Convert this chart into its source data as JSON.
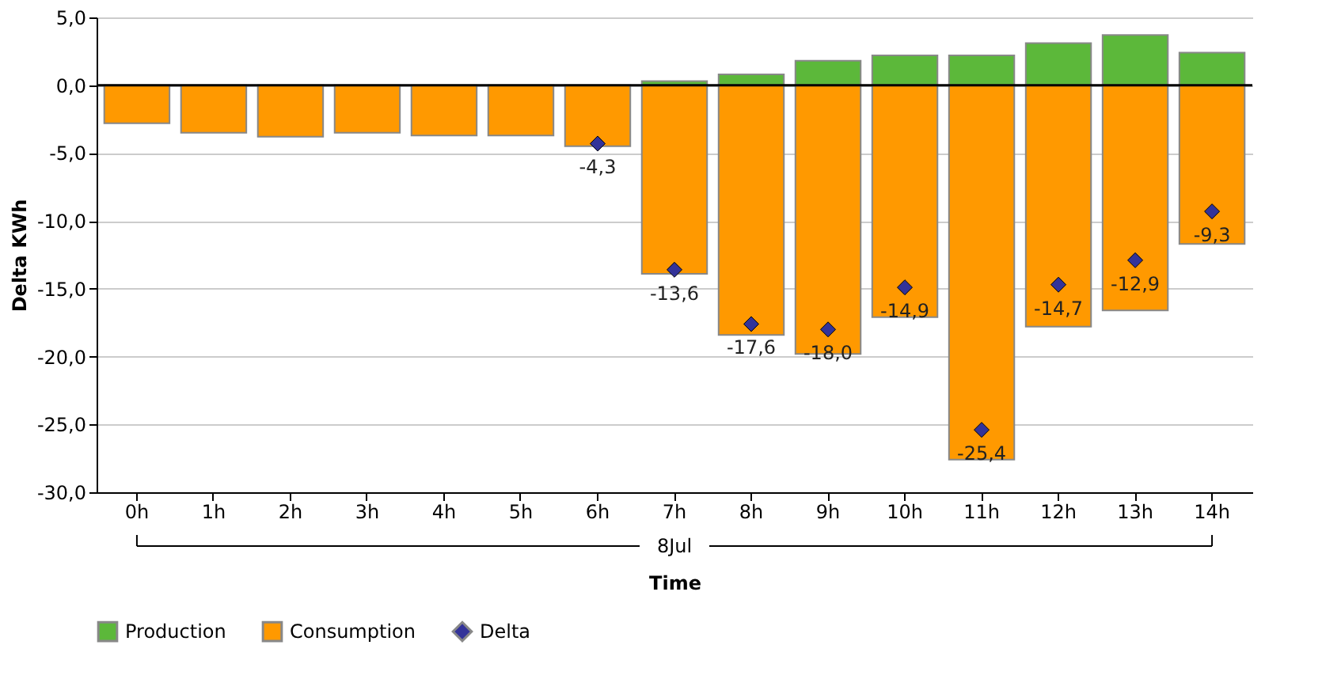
{
  "chart_data": {
    "type": "bar",
    "stacked": true,
    "xlabel": "Time",
    "ylabel": "Delta KWh",
    "categories": [
      "0h",
      "1h",
      "2h",
      "3h",
      "4h",
      "5h",
      "6h",
      "7h",
      "8h",
      "9h",
      "10h",
      "11h",
      "12h",
      "13h",
      "14h"
    ],
    "series": [
      {
        "name": "Production",
        "color": "#5cb83a",
        "values": [
          null,
          null,
          null,
          null,
          null,
          null,
          null,
          0.3,
          0.8,
          1.8,
          2.2,
          2.2,
          3.1,
          3.7,
          2.4
        ]
      },
      {
        "name": "Consumption",
        "color": "#ff9900",
        "values": [
          -2.8,
          -3.5,
          -3.8,
          -3.5,
          -3.7,
          -3.7,
          -4.5,
          -13.9,
          -18.4,
          -19.8,
          -17.1,
          -27.6,
          -17.8,
          -16.6,
          -11.7
        ]
      },
      {
        "name": "Delta",
        "type": "scatter",
        "color": "#333399",
        "marker": "diamond",
        "values": [
          null,
          null,
          null,
          null,
          null,
          null,
          -4.3,
          -13.6,
          -17.6,
          -18.0,
          -14.9,
          -25.4,
          -14.7,
          -12.9,
          -9.3
        ],
        "value_labels": [
          null,
          null,
          null,
          null,
          null,
          null,
          "-4,3",
          "-13,6",
          "-17,6",
          "-18,0",
          "-14,9",
          "-25,4",
          "-14,7",
          "-12,9",
          "-9,3"
        ]
      }
    ],
    "ylim": [
      -30,
      5
    ],
    "yticks": [
      {
        "value": -30,
        "label": "-30,0"
      },
      {
        "value": -25,
        "label": "-25,0"
      },
      {
        "value": -20,
        "label": "-20,0"
      },
      {
        "value": -15,
        "label": "-15,0"
      },
      {
        "value": -10,
        "label": "-10,0"
      },
      {
        "value": -5,
        "label": "-5,0"
      },
      {
        "value": 0,
        "label": "0,0"
      },
      {
        "value": 5,
        "label": "5,0"
      }
    ],
    "ref_lines": [
      {
        "axis": "y",
        "value": 0,
        "color": "#000000"
      }
    ],
    "annotations": [
      "8Jul"
    ],
    "grid": "y",
    "legend": "bottom"
  }
}
